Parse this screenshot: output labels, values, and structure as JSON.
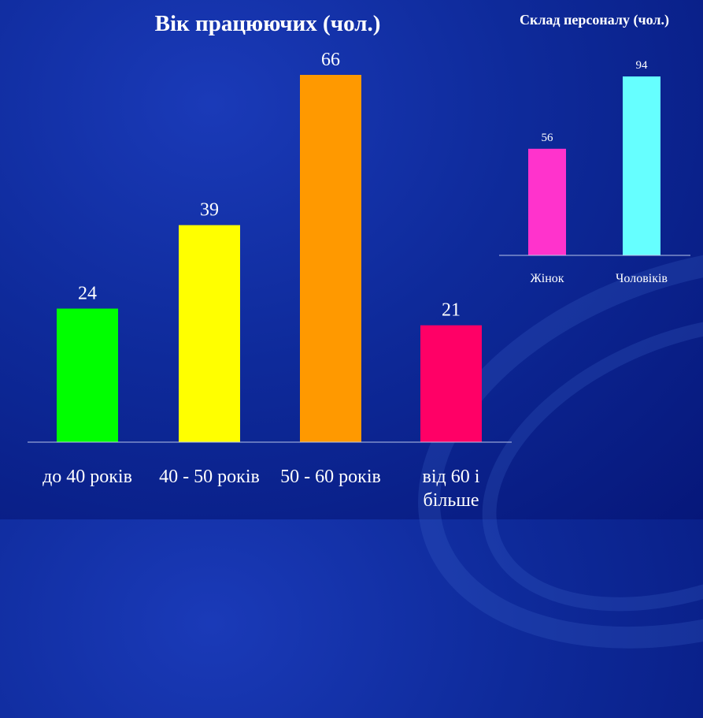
{
  "chart_data": [
    {
      "type": "bar",
      "title": "Вік працюючих (чол.)",
      "categories": [
        "до 40 років",
        "40 - 50 років",
        "50 - 60 років",
        "від 60 і більше"
      ],
      "category_lines": [
        [
          "до 40 років"
        ],
        [
          "40 - 50 років"
        ],
        [
          "50 - 60 років"
        ],
        [
          "від 60 і",
          "більше"
        ]
      ],
      "values": [
        24,
        39,
        66,
        21
      ],
      "colors": [
        "#00ff00",
        "#ffff00",
        "#ff9900",
        "#ff0066"
      ],
      "ylim": [
        0,
        66
      ],
      "grid": false,
      "data_labels": true
    },
    {
      "type": "bar",
      "title": "Склад персоналу (чол.)",
      "categories": [
        "Жінок",
        "Чоловіків"
      ],
      "values": [
        56,
        94
      ],
      "colors": [
        "#ff33cc",
        "#66ffff"
      ],
      "ylim": [
        0,
        94
      ],
      "grid": false,
      "data_labels": true
    }
  ]
}
